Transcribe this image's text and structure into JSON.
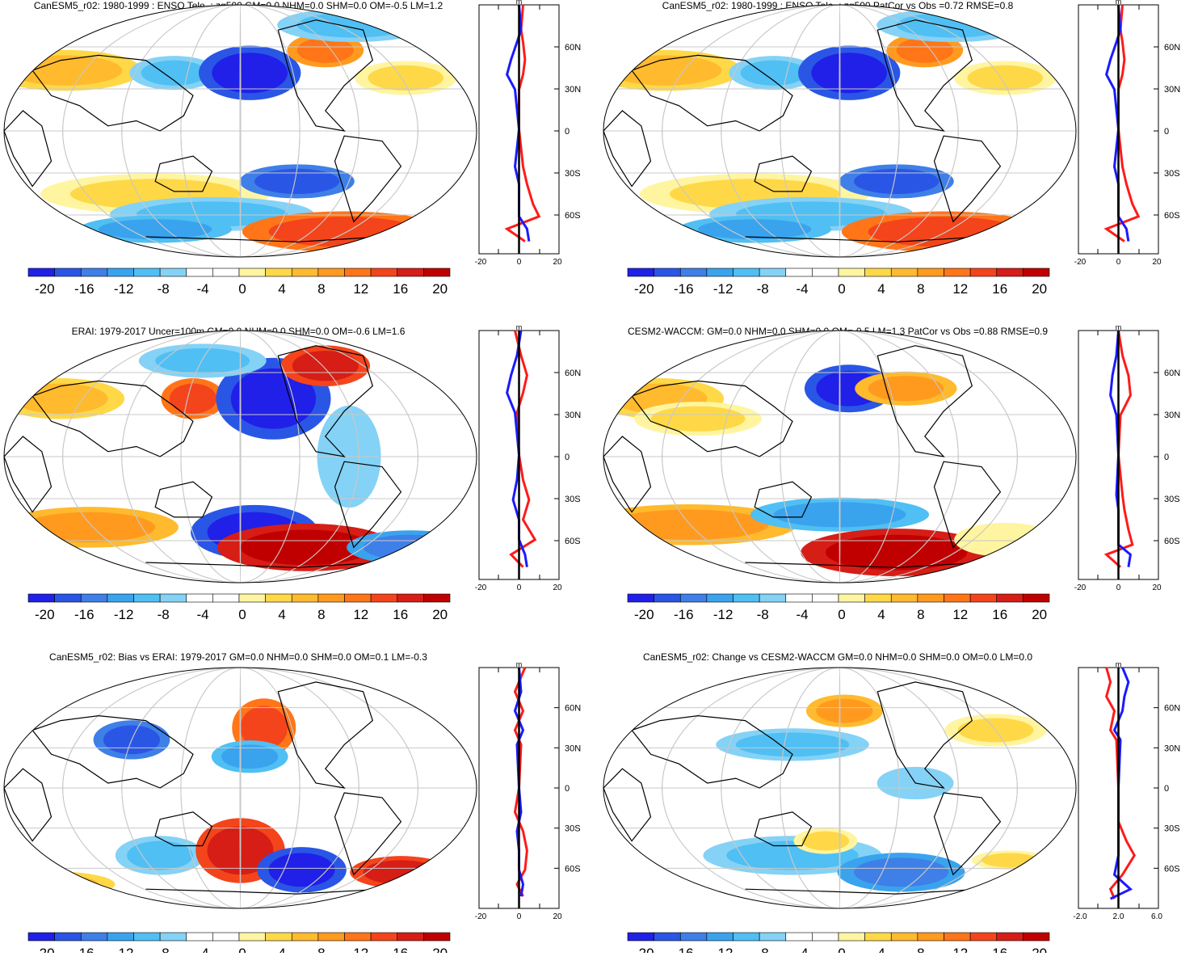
{
  "palette": {
    "levels": [
      "#2020e8",
      "#2a56e6",
      "#3f7fe8",
      "#3aa3ee",
      "#50bff3",
      "#84d2f6",
      "#ffffff",
      "#ffffff",
      "#fff5a0",
      "#ffd847",
      "#ffba2d",
      "#ff9a1f",
      "#ff7518",
      "#f4441c",
      "#d61d16",
      "#c00000"
    ],
    "zonal_red": "#ff1a1a",
    "zonal_blue": "#1a1aff",
    "coast": "#000000",
    "grid": "#c8c8c8"
  },
  "colorbar_labels": [
    "-20",
    "-16",
    "-12",
    "-8",
    "-4",
    "0",
    "4",
    "8",
    "12",
    "16",
    "20"
  ],
  "lat_labels": [
    "60N",
    "30N",
    "0",
    "30S",
    "60S"
  ],
  "zonal_unit": "m",
  "panels": [
    {
      "title": "CanESM5_r02: 1980-1999 : ENSO Tele. : zg500 GM=0.0 NHM=0.0 SHM=0.0 OM=-0.5 LM=1.2",
      "zonal_ticks": [
        "-20",
        "0",
        "20"
      ]
    },
    {
      "title": "CanESM5_r02: 1980-1999 : ENSO Tele. : zg500 PatCor vs Obs =0.72 RMSE=0.8",
      "zonal_ticks": [
        "-20",
        "0",
        "20"
      ]
    },
    {
      "title": "ERAI: 1979-2017 Uncer=100m GM=0.0 NHM=0.0 SHM=0.0 OM=-0.6 LM=1.6",
      "zonal_ticks": [
        "-20",
        "0",
        "20"
      ]
    },
    {
      "title": "CESM2-WACCM: GM=0.0 NHM=0.0 SHM=0.0 OM=-0.5 LM=1.3 PatCor vs Obs =0.88 RMSE=0.9",
      "zonal_ticks": [
        "-20",
        "0",
        "20"
      ]
    },
    {
      "title": "CanESM5_r02: Bias vs ERAI: 1979-2017 GM=0.0 NHM=0.0 SHM=0.0 OM=0.1 LM=-0.3",
      "zonal_ticks": [
        "-20",
        "0",
        "20"
      ]
    },
    {
      "title": "CanESM5_r02: Change vs CESM2-WACCM GM=0.0 NHM=0.0 SHM=0.0 OM=0.0 LM=0.0",
      "zonal_ticks": [
        "-2.0",
        "2.0",
        "6.0"
      ]
    }
  ]
}
